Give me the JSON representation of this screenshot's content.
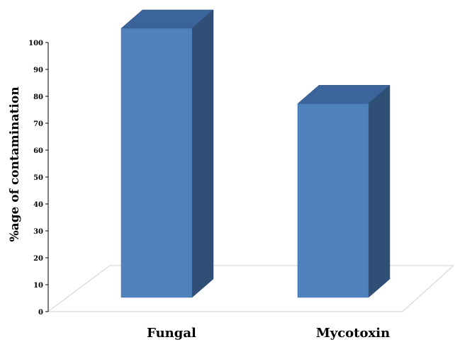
{
  "chart_data": {
    "type": "bar",
    "style": "3d-column",
    "title": "",
    "xlabel": "",
    "ylabel": "%age of contamination",
    "categories": [
      "Fungal",
      "Mycotoxin"
    ],
    "values": [
      100,
      72
    ],
    "ylim": [
      0,
      100
    ],
    "yticks": [
      "0",
      "10",
      "20",
      "30",
      "40",
      "50",
      "60",
      "70",
      "80",
      "90",
      "100"
    ],
    "grid": false,
    "legend": "none",
    "colors": {
      "front": "#4f81bd",
      "side": "#2f4f76",
      "top": "#3a649a",
      "floor_edge": "#d0d0d0",
      "axis": "#000000"
    }
  }
}
